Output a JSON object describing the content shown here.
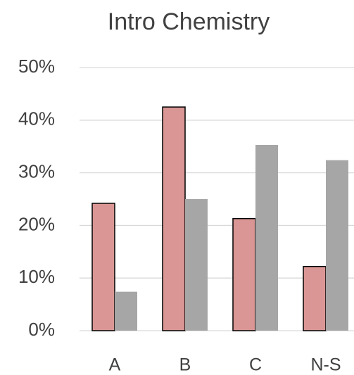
{
  "chart_data": {
    "type": "bar",
    "title": "Intro Chemistry",
    "categories": [
      "A",
      "B",
      "C",
      "N-S"
    ],
    "series": [
      {
        "color": "#d99694",
        "values": [
          24.2,
          42.5,
          21.3,
          12.2
        ]
      },
      {
        "color": "#a6a6a6",
        "values": [
          7.4,
          25.0,
          35.3,
          32.4
        ]
      }
    ],
    "ylim": [
      0,
      50
    ],
    "yticks": [
      {
        "value": 0,
        "label": "0%"
      },
      {
        "value": 10,
        "label": "10%"
      },
      {
        "value": 20,
        "label": "20%"
      },
      {
        "value": 30,
        "label": "30%"
      },
      {
        "value": 40,
        "label": "40%"
      },
      {
        "value": 50,
        "label": "50%"
      }
    ],
    "grid": true
  }
}
